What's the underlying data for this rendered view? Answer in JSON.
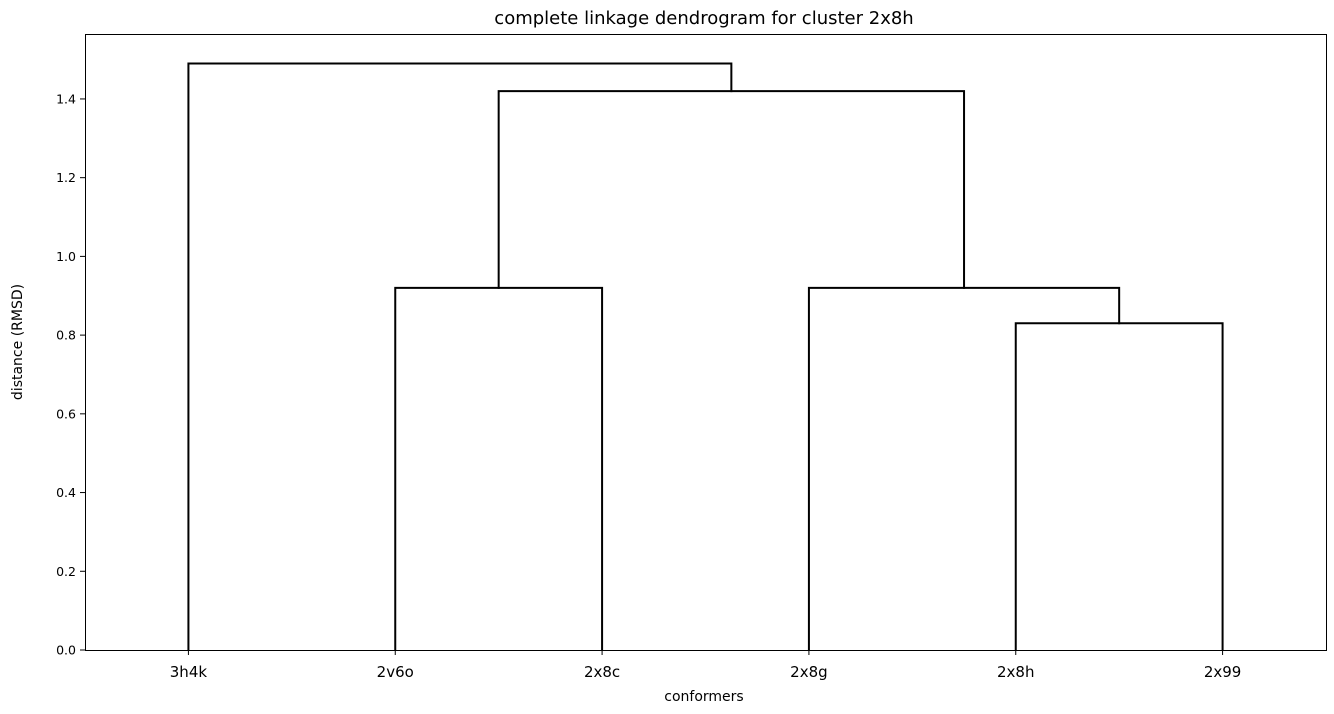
{
  "chart_data": {
    "type": "dendrogram",
    "title": "complete linkage dendrogram for cluster 2x8h",
    "xlabel": "conformers",
    "ylabel": "distance (RMSD)",
    "ylim": [
      0.0,
      1.565
    ],
    "yticks": [
      0.0,
      0.2,
      0.4,
      0.6,
      0.8,
      1.0,
      1.2,
      1.4
    ],
    "yticks_text": [
      "0.0",
      "0.2",
      "0.4",
      "0.6",
      "0.8",
      "1.0",
      "1.2",
      "1.4"
    ],
    "grid": false,
    "line_color": "#000000",
    "leaves": [
      "3h4k",
      "2v6o",
      "2x8c",
      "2x8g",
      "2x8h",
      "2x99"
    ],
    "merges": [
      {
        "left": "2x8h",
        "right": "2x99",
        "distance": 0.83
      },
      {
        "left": "2v6o",
        "right": "2x8c",
        "distance": 0.92
      },
      {
        "left": "2x8g",
        "right": "(2x8h,2x99)",
        "distance": 0.92
      },
      {
        "left": "(2v6o,2x8c)",
        "right": "(2x8g,(2x8h,2x99))",
        "distance": 1.42
      },
      {
        "left": "3h4k",
        "right": "((2v6o,2x8c),(2x8g,(2x8h,2x99)))",
        "distance": 1.49
      }
    ]
  }
}
